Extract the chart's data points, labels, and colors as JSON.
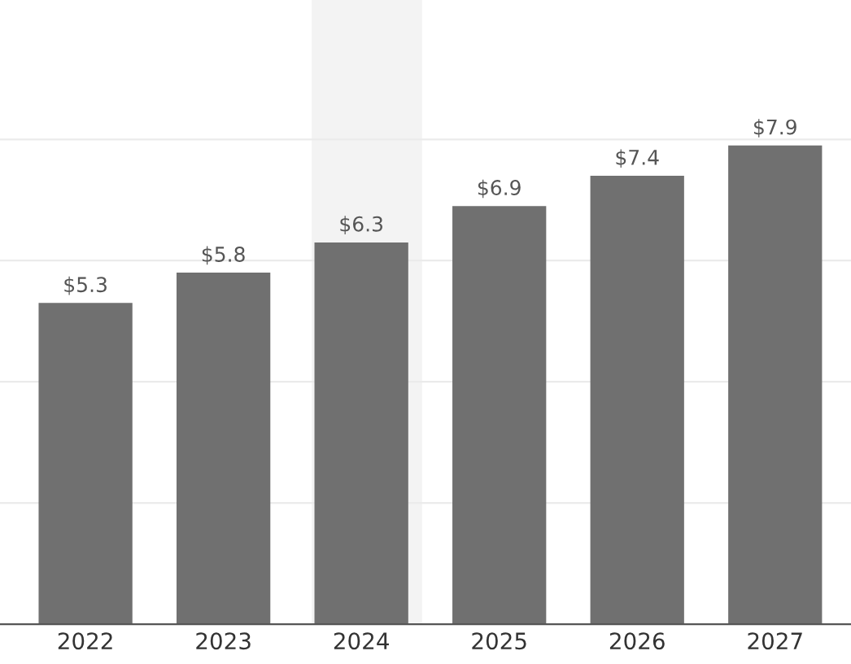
{
  "chart_data": {
    "type": "bar",
    "categories": [
      "2022",
      "2023",
      "2024",
      "2025",
      "2026",
      "2027"
    ],
    "values": [
      5.3,
      5.8,
      6.3,
      6.9,
      7.4,
      7.9
    ],
    "value_labels": [
      "$5.3",
      "$5.8",
      "$6.3",
      "$6.9",
      "$7.4",
      "$7.9"
    ],
    "color": "#707070",
    "ylim": [
      0,
      10.3
    ],
    "yticks": [
      {
        "value": 2,
        "label": null
      },
      {
        "value": 4,
        "label": null
      },
      {
        "value": 6,
        "label": null
      },
      {
        "value": 8,
        "label": null
      }
    ],
    "grid": "y",
    "tick_labels": "x",
    "bands": [
      {
        "axis": "x",
        "from": "2024",
        "to": "2024",
        "color": "#f3f3f3"
      }
    ]
  }
}
